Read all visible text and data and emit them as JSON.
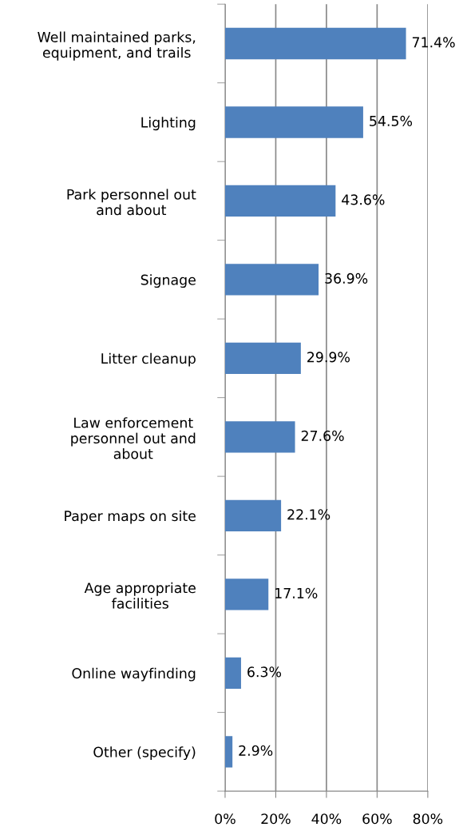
{
  "chart_data": {
    "type": "bar",
    "orientation": "horizontal",
    "categories": [
      "Well maintained parks,\nequipment, and trails",
      "Lighting",
      "Park personnel out\nand about",
      "Signage",
      "Litter cleanup",
      "Law enforcement\npersonnel out and\nabout",
      "Paper maps on site",
      "Age appropriate\nfacilities",
      "Online wayfinding",
      "Other (specify)"
    ],
    "values": [
      71.4,
      54.5,
      43.6,
      36.9,
      29.9,
      27.6,
      22.1,
      17.1,
      6.3,
      2.9
    ],
    "value_labels": [
      "71.4%",
      "54.5%",
      "43.6%",
      "36.9%",
      "29.9%",
      "27.6%",
      "22.1%",
      "17.1%",
      "6.3%",
      "2.9%"
    ],
    "color": "#4f81bd",
    "xlim": [
      0,
      80
    ],
    "xticks": [
      {
        "value": 0,
        "label": "0%"
      },
      {
        "value": 20,
        "label": "20%"
      },
      {
        "value": 40,
        "label": "40%"
      },
      {
        "value": 60,
        "label": "60%"
      },
      {
        "value": 80,
        "label": "80%"
      }
    ],
    "grid": "x",
    "legend": false
  }
}
